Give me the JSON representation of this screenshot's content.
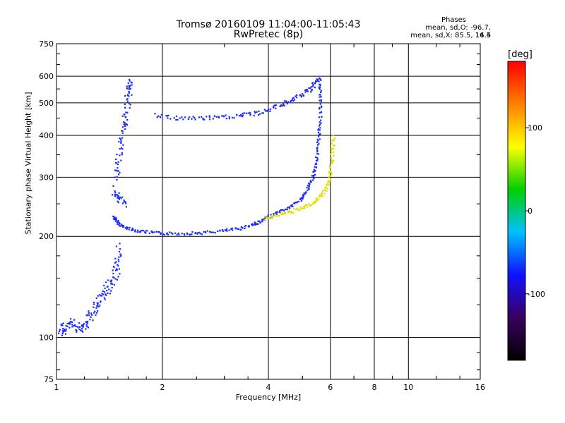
{
  "header": {
    "title_line1": "Tromsø 20160109 11:04:00-11:05:43",
    "title_line2": "RwPretec (8p)",
    "stats_label": "Phases",
    "stats_o": "mean, sd,O: -96.7, 14.4",
    "stats_x": "mean, sd,X: 85.5, 16.5"
  },
  "colorbar": {
    "unit": "[deg]",
    "ticks": [
      "100",
      "0",
      "-100"
    ],
    "tick_values": [
      100,
      0,
      -100
    ],
    "range": [
      -180,
      180
    ],
    "colors": [
      "#000000",
      "#3a0060",
      "#1010ff",
      "#00c0ff",
      "#00d000",
      "#ffff00",
      "#ff8000",
      "#ff0000"
    ]
  },
  "chart_data": {
    "type": "scatter",
    "xlabel": "Frequency [MHz]",
    "ylabel": "Stationary phase Virtual Height [km]",
    "xscale": "log",
    "yscale": "log",
    "xlim": [
      1,
      16
    ],
    "ylim": [
      75,
      750
    ],
    "xticks": [
      1,
      2,
      4,
      6,
      8,
      10,
      16
    ],
    "xtick_labels": [
      "1",
      "2",
      "4",
      "6",
      "8",
      "10",
      "16"
    ],
    "yticks": [
      75,
      100,
      200,
      300,
      400,
      500,
      600,
      750
    ],
    "ytick_labels": [
      "75",
      "100",
      "200",
      "300",
      "400",
      "500",
      "600",
      "750"
    ],
    "grid": true,
    "o_mode_trace": {
      "name": "",
      "phase_color": "#1a2cff",
      "points": [
        [
          1.45,
          230
        ],
        [
          1.48,
          222
        ],
        [
          1.55,
          214
        ],
        [
          1.65,
          210
        ],
        [
          1.8,
          207
        ],
        [
          2.0,
          205
        ],
        [
          2.3,
          205
        ],
        [
          2.6,
          206
        ],
        [
          3.0,
          209
        ],
        [
          3.3,
          212
        ],
        [
          3.6,
          218
        ],
        [
          3.8,
          223
        ],
        [
          4.0,
          230
        ],
        [
          4.3,
          238
        ],
        [
          4.6,
          246
        ],
        [
          4.9,
          258
        ],
        [
          5.1,
          272
        ],
        [
          5.3,
          295
        ],
        [
          5.4,
          320
        ],
        [
          5.5,
          360
        ],
        [
          5.55,
          410
        ],
        [
          5.6,
          470
        ],
        [
          5.6,
          540
        ],
        [
          5.55,
          600
        ]
      ]
    },
    "x_mode_trace": {
      "name": "",
      "phase_color": "#e0e000",
      "points": [
        [
          3.9,
          228
        ],
        [
          4.2,
          232
        ],
        [
          4.6,
          238
        ],
        [
          5.0,
          244
        ],
        [
          5.4,
          255
        ],
        [
          5.7,
          270
        ],
        [
          5.9,
          290
        ],
        [
          6.0,
          320
        ],
        [
          6.05,
          360
        ],
        [
          6.1,
          400
        ]
      ]
    },
    "o_mode_upper": {
      "name": "",
      "phase_color": "#1a2cff",
      "points": [
        [
          1.9,
          460
        ],
        [
          2.2,
          452
        ],
        [
          2.6,
          452
        ],
        [
          3.0,
          455
        ],
        [
          3.4,
          462
        ],
        [
          3.8,
          470
        ],
        [
          4.2,
          490
        ],
        [
          4.6,
          510
        ],
        [
          5.0,
          530
        ],
        [
          5.3,
          560
        ],
        [
          5.5,
          590
        ]
      ]
    },
    "spread_f_lower": {
      "name": "",
      "phase_color": "#1a2cff",
      "points": [
        [
          1.48,
          300
        ],
        [
          1.5,
          350
        ],
        [
          1.55,
          420
        ],
        [
          1.58,
          480
        ],
        [
          1.6,
          550
        ],
        [
          1.6,
          580
        ],
        [
          1.45,
          270
        ],
        [
          1.5,
          260
        ],
        [
          1.55,
          250
        ]
      ]
    },
    "e_region": {
      "name": "",
      "phase_color": "#1a2cff",
      "points": [
        [
          1.02,
          103
        ],
        [
          1.05,
          108
        ],
        [
          1.1,
          112
        ],
        [
          1.15,
          105
        ],
        [
          1.2,
          110
        ],
        [
          1.25,
          118
        ],
        [
          1.3,
          125
        ],
        [
          1.35,
          135
        ],
        [
          1.4,
          142
        ],
        [
          1.45,
          150
        ],
        [
          1.5,
          165
        ],
        [
          1.48,
          190
        ]
      ]
    }
  }
}
